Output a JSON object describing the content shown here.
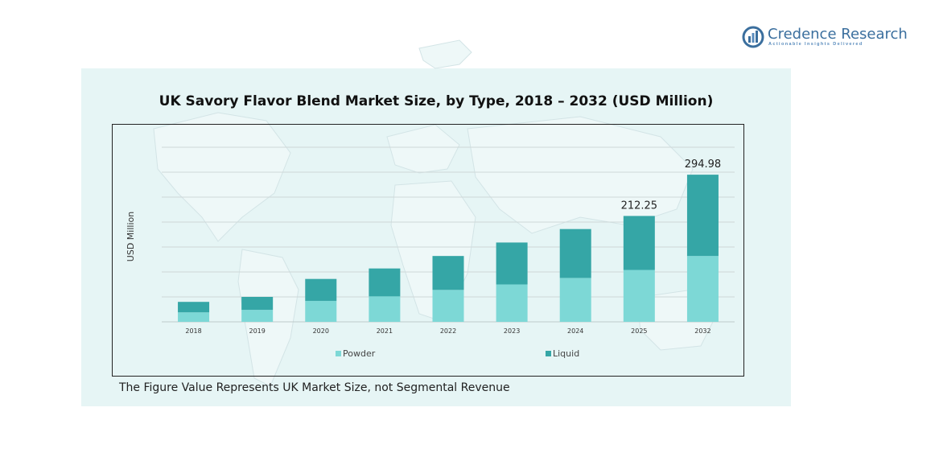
{
  "brand": {
    "name": "Credence Research",
    "tagline": "Actionable Insights Delivered",
    "colors": {
      "primary": "#3b6f9e",
      "accent": "#5a8cbd"
    }
  },
  "footnote": "The Figure Value Represents UK Market Size, not Segmental Revenue",
  "chart_data": {
    "type": "bar",
    "stacked": true,
    "title": "UK Savory Flavor Blend Market Size, by Type, 2018 – 2032 (USD Million)",
    "ylabel": "USD Million",
    "xlabel": "",
    "categories": [
      "2018",
      "2019",
      "2020",
      "2021",
      "2022",
      "2023",
      "2024",
      "2025",
      "2032"
    ],
    "series": [
      {
        "name": "Powder",
        "color": "#7dd8d6",
        "values": [
          19,
          24,
          42,
          51,
          64,
          75,
          88,
          104,
          132
        ]
      },
      {
        "name": "Liquid",
        "color": "#35a6a6",
        "values": [
          21,
          26,
          44,
          56,
          68,
          84,
          98,
          108.25,
          162.98
        ]
      }
    ],
    "data_labels": [
      {
        "category": "2025",
        "text": "212.25"
      },
      {
        "category": "2032",
        "text": "294.98"
      }
    ],
    "ylim": [
      0,
      350
    ],
    "grid": true,
    "legend": "bottom"
  }
}
